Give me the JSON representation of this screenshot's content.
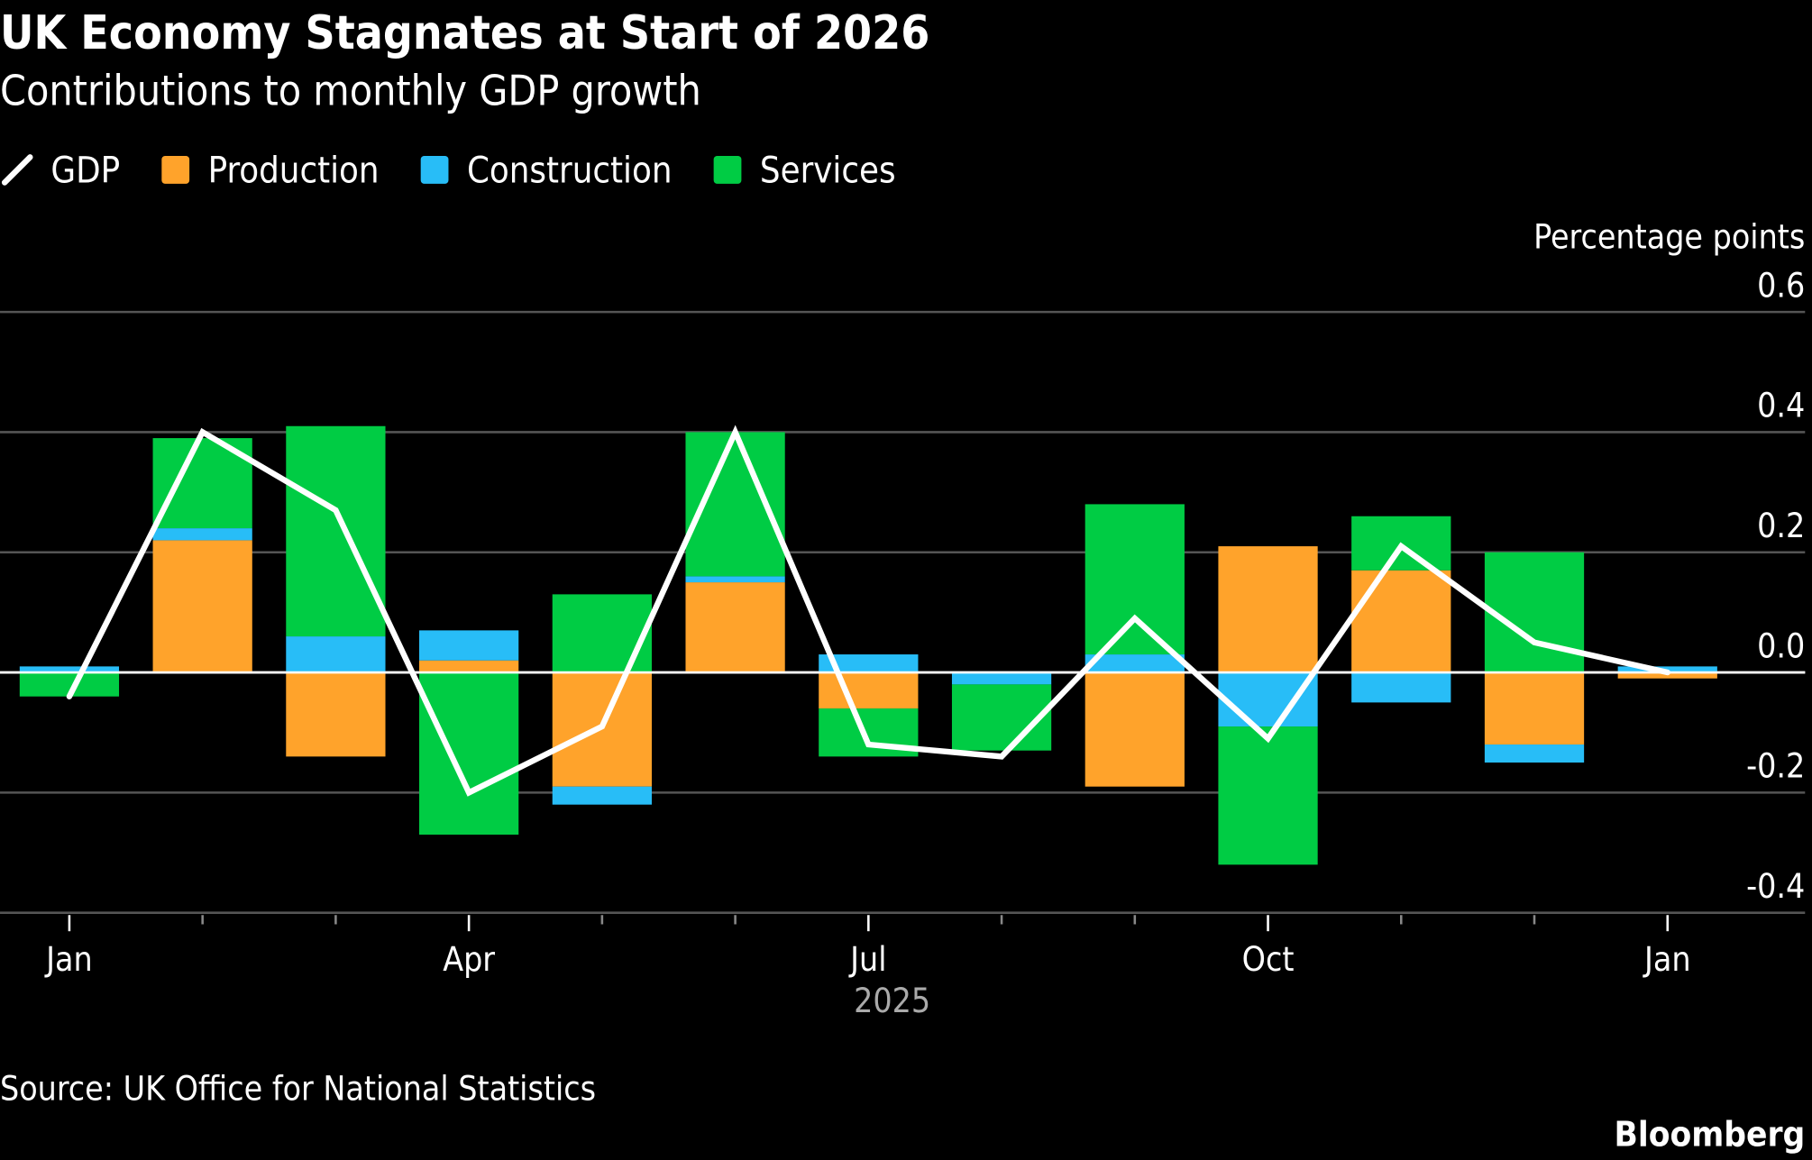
{
  "chart_data": {
    "type": "bar",
    "stacked": true,
    "title": "UK Economy Stagnates at Start of 2026",
    "subtitle": "Contributions to monthly GDP growth",
    "ylabel": "Percentage points",
    "ylim": [
      -0.4,
      0.6
    ],
    "yticks": [
      "0.6",
      "0.4",
      "0.2",
      "0.0",
      "-0.2",
      "-0.4"
    ],
    "ytick_values": [
      0.6,
      0.4,
      0.2,
      0.0,
      -0.2,
      -0.4
    ],
    "categories": [
      "2025-01",
      "2025-02",
      "2025-03",
      "2025-04",
      "2025-05",
      "2025-06",
      "2025-07",
      "2025-08",
      "2025-09",
      "2025-10",
      "2025-11",
      "2025-12",
      "2026-01"
    ],
    "xtick_labels": [
      {
        "month": "2025-01",
        "label": "Jan"
      },
      {
        "month": "2025-04",
        "label": "Apr"
      },
      {
        "month": "2025-07",
        "label": "Jul"
      },
      {
        "month": "2025-10",
        "label": "Oct"
      },
      {
        "month": "2026-01",
        "label": "Jan"
      }
    ],
    "xaxis_year_label": "2025",
    "grid": true,
    "legend_placement": "top-left",
    "series": [
      {
        "name": "Production",
        "kind": "bar",
        "color": "#ffa32b",
        "values": [
          0,
          0.22,
          -0.14,
          0.02,
          -0.19,
          0.15,
          -0.06,
          0,
          -0.19,
          0.21,
          0.17,
          -0.12,
          -0.01
        ]
      },
      {
        "name": "Construction",
        "kind": "bar",
        "color": "#28bdf7",
        "values": [
          0.01,
          0.02,
          0.06,
          0.05,
          -0.03,
          0.01,
          0.03,
          -0.02,
          0.03,
          -0.09,
          -0.05,
          -0.03,
          0.01
        ]
      },
      {
        "name": "Services",
        "kind": "bar",
        "color": "#00cc44",
        "values": [
          -0.04,
          0.15,
          0.35,
          -0.27,
          0.13,
          0.24,
          -0.08,
          -0.11,
          0.25,
          -0.23,
          0.09,
          0.2,
          0
        ]
      },
      {
        "name": "GDP",
        "kind": "line",
        "color": "#ffffff",
        "values": [
          -0.04,
          0.4,
          0.27,
          -0.2,
          -0.09,
          0.4,
          -0.12,
          -0.14,
          0.09,
          -0.11,
          0.21,
          0.05,
          0.0
        ]
      }
    ],
    "source": "Source: UK Office for National Statistics",
    "brand": "Bloomberg"
  }
}
